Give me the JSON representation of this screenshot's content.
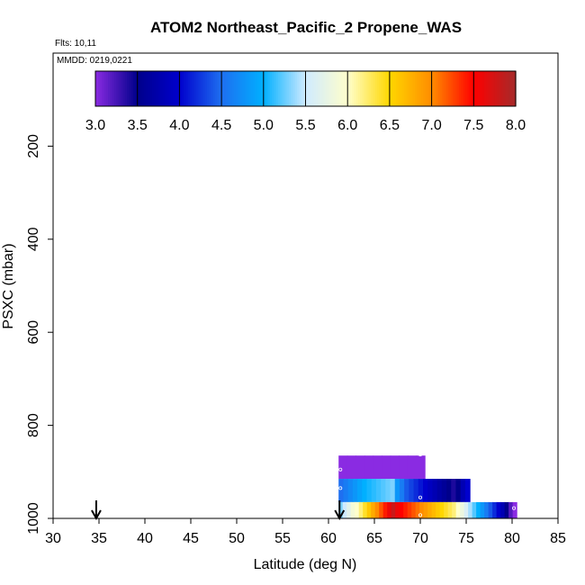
{
  "chart_data": {
    "type": "heatmap",
    "title": "ATOM2 Northeast_Pacific_2 Propene_WAS",
    "flights_label": "Flts: 10,11",
    "dates_label": "MMDD: 0219,0221",
    "xlabel": "Latitude (deg N)",
    "ylabel": "PSXC (mbar)",
    "xlim": [
      30,
      85
    ],
    "ylim": [
      1000,
      0
    ],
    "x_ticks": [
      "30",
      "35",
      "40",
      "45",
      "50",
      "55",
      "60",
      "65",
      "70",
      "75",
      "80",
      "85"
    ],
    "y_ticks": [
      "200",
      "400",
      "600",
      "800",
      "1000"
    ],
    "colorbar": {
      "range": [
        3.0,
        8.0
      ],
      "tick_labels": [
        "3.0",
        "3.5",
        "4.0",
        "4.5",
        "5.0",
        "5.5",
        "6.0",
        "6.5",
        "7.0",
        "7.5",
        "8.0"
      ]
    },
    "arrows_latitude": [
      34.7,
      61.2
    ],
    "curtain_rows": [
      {
        "p_top": 865,
        "p_bottom": 915,
        "lat_start": 61.1,
        "lat_end": 70.5,
        "values": [
          3.0,
          3.0,
          3.0,
          3.0,
          3.0,
          3.0,
          3.0,
          3.0,
          3.0,
          3.0
        ]
      },
      {
        "p_top": 915,
        "p_bottom": 965,
        "lat_start": 61.1,
        "lat_end": 75.4,
        "values": [
          4.5,
          4.6,
          4.7,
          4.8,
          4.9,
          5.0,
          5.05,
          5.1,
          5.15,
          5.2,
          5.25,
          5.3,
          4.8,
          4.6,
          4.4,
          4.3,
          4.2,
          4.1,
          4.0,
          3.9,
          3.8,
          3.7,
          3.6,
          3.5,
          3.4,
          3.5,
          3.8,
          4.0
        ]
      },
      {
        "p_top": 965,
        "p_bottom": 1000,
        "lat_start": 61.1,
        "lat_end": 80.5,
        "values": [
          5.3,
          5.5,
          5.7,
          5.9,
          6.0,
          6.2,
          6.4,
          6.6,
          6.8,
          7.0,
          7.2,
          7.4,
          7.6,
          7.8,
          7.6,
          7.5,
          7.4,
          7.3,
          7.2,
          7.1,
          7.0,
          6.9,
          6.8,
          6.7,
          6.6,
          6.5,
          6.4,
          6.3,
          6.2,
          6.0,
          5.8,
          5.6,
          5.4,
          5.2,
          5.0,
          4.8,
          4.6,
          4.4,
          4.2,
          4.0,
          3.8,
          3.5,
          3.2,
          3.0
        ]
      }
    ],
    "sample_markers": [
      {
        "lat": 61.3,
        "p": 895
      },
      {
        "lat": 61.3,
        "p": 935
      },
      {
        "lat": 70.0,
        "p": 863
      },
      {
        "lat": 70.0,
        "p": 955
      },
      {
        "lat": 70.0,
        "p": 993
      },
      {
        "lat": 80.2,
        "p": 978
      }
    ]
  }
}
